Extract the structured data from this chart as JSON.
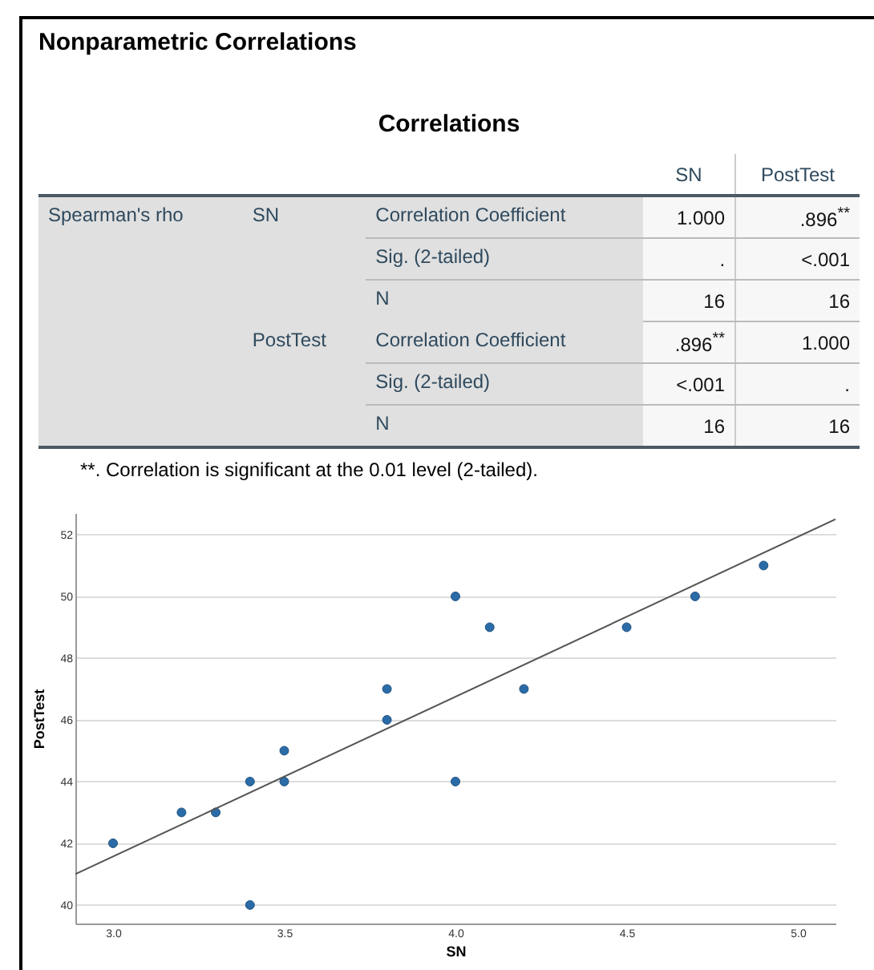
{
  "chart_data": [
    {
      "type": "other",
      "title": "Nonparametric Correlations",
      "subtitle": "Correlations",
      "annotations": [
        "SN",
        "PostTest",
        "Spearman's rho",
        "SN",
        "Correlation Coefficient",
        "1.000",
        ".896$^{**}$",
        "Sig. (2-tailed)",
        ".",
        "<.001",
        "N",
        "16",
        "16",
        "PostTest",
        "Correlation Coefficient",
        ".896$^{**}$",
        "1.000",
        "Sig. (2-tailed)",
        "<.001",
        ".",
        "N",
        "16",
        "16",
        "**. Correlation is significant at the 0.01 level (2-tailed)."
      ]
    },
    {
      "type": "scatter",
      "xlabel": "SN",
      "ylabel": "PostTest",
      "grid": "y",
      "xlim": [
        2.89,
        5.11
      ],
      "ylim": [
        39.4,
        52.7
      ],
      "xticks": [
        {
          "value": 3,
          "label": "3.0"
        },
        {
          "value": 3.5,
          "label": "3.5"
        },
        {
          "value": 4,
          "label": "4.0"
        },
        {
          "value": 4.5,
          "label": "4.5"
        },
        {
          "value": 5,
          "label": "5.0"
        }
      ],
      "yticks": [
        40,
        42,
        44,
        46,
        48,
        50,
        52
      ],
      "series": [
        {
          "color": "#2b6ca8",
          "marker": "circle",
          "x": [
            3.0,
            3.2,
            3.3,
            3.4,
            3.4,
            3.5,
            3.5,
            3.8,
            3.8,
            4.0,
            4.0,
            4.1,
            4.2,
            4.5,
            4.7,
            4.9
          ],
          "values": [
            42,
            43,
            43,
            44,
            40,
            45,
            44,
            47,
            46,
            50,
            44,
            49,
            47,
            49,
            50,
            51
          ]
        },
        {
          "type": "line",
          "marker": "none",
          "color": "#555555",
          "x": [
            2.89,
            5.11
          ],
          "values": [
            41.0,
            52.5
          ]
        }
      ]
    }
  ]
}
